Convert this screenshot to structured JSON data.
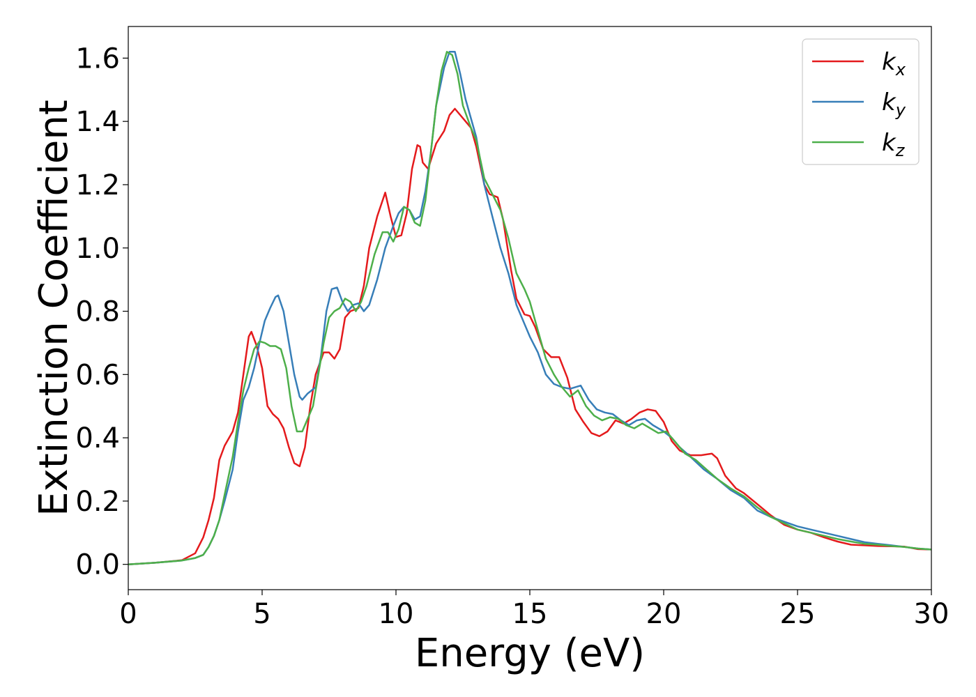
{
  "chart_data": {
    "type": "line",
    "title": "",
    "xlabel": "Energy (eV)",
    "ylabel": "Extinction Coefficient",
    "xlim": [
      0,
      30
    ],
    "ylim": [
      -0.08,
      1.7
    ],
    "xticks": [
      0,
      5,
      10,
      15,
      20,
      25,
      30
    ],
    "xtick_labels": [
      "0",
      "5",
      "10",
      "15",
      "20",
      "25",
      "30"
    ],
    "yticks": [
      0.0,
      0.2,
      0.4,
      0.6,
      0.8,
      1.0,
      1.2,
      1.4,
      1.6
    ],
    "ytick_labels": [
      "0.0",
      "0.2",
      "0.4",
      "0.6",
      "0.8",
      "1.0",
      "1.2",
      "1.4",
      "1.6"
    ],
    "grid": false,
    "legend_position": "top-right",
    "series": [
      {
        "name": "k_x",
        "base": "k",
        "sub": "x",
        "color": "#e41a1c",
        "x": [
          0,
          1,
          2,
          2.5,
          2.8,
          3.0,
          3.2,
          3.4,
          3.6,
          3.9,
          4.1,
          4.3,
          4.5,
          4.6,
          4.8,
          5.0,
          5.2,
          5.4,
          5.6,
          5.8,
          6.0,
          6.2,
          6.4,
          6.6,
          6.8,
          7.0,
          7.3,
          7.5,
          7.7,
          7.9,
          8.1,
          8.3,
          8.6,
          8.8,
          9.0,
          9.3,
          9.6,
          9.8,
          10.0,
          10.2,
          10.4,
          10.6,
          10.8,
          10.9,
          11.0,
          11.2,
          11.5,
          11.8,
          12.0,
          12.2,
          12.5,
          12.8,
          13.0,
          13.3,
          13.5,
          13.8,
          14.0,
          14.3,
          14.5,
          14.8,
          15.0,
          15.2,
          15.5,
          15.8,
          16.1,
          16.4,
          16.7,
          17.0,
          17.3,
          17.6,
          17.9,
          18.2,
          18.5,
          18.8,
          19.1,
          19.4,
          19.7,
          20.0,
          20.3,
          20.6,
          21.0,
          21.4,
          21.8,
          22.0,
          22.3,
          22.7,
          23.0,
          23.5,
          24.0,
          24.5,
          25.0,
          25.5,
          26.0,
          26.5,
          27.0,
          27.5,
          28.0,
          28.5,
          29.0,
          29.5,
          30.0
        ],
        "y": [
          0.0,
          0.005,
          0.013,
          0.035,
          0.085,
          0.14,
          0.21,
          0.33,
          0.375,
          0.42,
          0.48,
          0.6,
          0.72,
          0.735,
          0.69,
          0.62,
          0.5,
          0.475,
          0.46,
          0.43,
          0.37,
          0.32,
          0.31,
          0.37,
          0.5,
          0.6,
          0.67,
          0.67,
          0.65,
          0.68,
          0.78,
          0.8,
          0.81,
          0.88,
          1.0,
          1.1,
          1.175,
          1.1,
          1.035,
          1.04,
          1.11,
          1.25,
          1.325,
          1.32,
          1.27,
          1.25,
          1.33,
          1.37,
          1.42,
          1.44,
          1.41,
          1.38,
          1.32,
          1.2,
          1.17,
          1.16,
          1.09,
          0.93,
          0.84,
          0.79,
          0.785,
          0.75,
          0.68,
          0.655,
          0.655,
          0.59,
          0.49,
          0.45,
          0.415,
          0.405,
          0.42,
          0.455,
          0.445,
          0.46,
          0.48,
          0.49,
          0.485,
          0.45,
          0.39,
          0.36,
          0.345,
          0.345,
          0.35,
          0.335,
          0.28,
          0.24,
          0.225,
          0.19,
          0.155,
          0.125,
          0.11,
          0.1,
          0.085,
          0.072,
          0.062,
          0.06,
          0.058,
          0.057,
          0.056,
          0.048,
          0.047
        ]
      },
      {
        "name": "k_y",
        "base": "k",
        "sub": "y",
        "color": "#377eb8",
        "x": [
          0,
          1,
          2,
          2.5,
          2.8,
          3.0,
          3.2,
          3.4,
          3.6,
          3.9,
          4.1,
          4.3,
          4.5,
          4.7,
          4.9,
          5.1,
          5.3,
          5.5,
          5.6,
          5.8,
          6.0,
          6.2,
          6.4,
          6.5,
          6.7,
          7.0,
          7.2,
          7.4,
          7.6,
          7.8,
          8.0,
          8.2,
          8.4,
          8.6,
          8.8,
          9.0,
          9.3,
          9.6,
          9.9,
          10.1,
          10.3,
          10.5,
          10.7,
          10.9,
          11.1,
          11.3,
          11.5,
          11.8,
          12.0,
          12.2,
          12.4,
          12.6,
          12.8,
          13.0,
          13.3,
          13.6,
          13.9,
          14.2,
          14.5,
          14.8,
          15.0,
          15.3,
          15.6,
          15.9,
          16.2,
          16.5,
          16.9,
          17.2,
          17.5,
          17.8,
          18.1,
          18.4,
          18.7,
          19.0,
          19.3,
          19.6,
          20.0,
          20.3,
          20.6,
          21.0,
          21.5,
          22.0,
          22.5,
          23.0,
          23.5,
          24.0,
          24.5,
          25.0,
          25.5,
          26.0,
          26.5,
          27.0,
          27.5,
          28.0,
          28.5,
          29.0,
          29.5,
          30.0
        ],
        "y": [
          0.0,
          0.005,
          0.012,
          0.02,
          0.03,
          0.055,
          0.09,
          0.14,
          0.2,
          0.3,
          0.42,
          0.52,
          0.56,
          0.62,
          0.7,
          0.77,
          0.81,
          0.845,
          0.85,
          0.8,
          0.7,
          0.6,
          0.53,
          0.52,
          0.54,
          0.56,
          0.66,
          0.8,
          0.87,
          0.875,
          0.83,
          0.8,
          0.82,
          0.825,
          0.8,
          0.82,
          0.9,
          1.0,
          1.07,
          1.11,
          1.13,
          1.12,
          1.09,
          1.1,
          1.18,
          1.3,
          1.45,
          1.57,
          1.62,
          1.62,
          1.55,
          1.47,
          1.41,
          1.35,
          1.2,
          1.1,
          1.0,
          0.92,
          0.82,
          0.76,
          0.72,
          0.67,
          0.6,
          0.57,
          0.56,
          0.555,
          0.565,
          0.52,
          0.49,
          0.48,
          0.475,
          0.455,
          0.44,
          0.455,
          0.46,
          0.44,
          0.42,
          0.4,
          0.37,
          0.34,
          0.3,
          0.27,
          0.235,
          0.21,
          0.17,
          0.15,
          0.135,
          0.12,
          0.11,
          0.1,
          0.09,
          0.08,
          0.07,
          0.065,
          0.06,
          0.055,
          0.05,
          0.047
        ]
      },
      {
        "name": "k_z",
        "base": "k",
        "sub": "z",
        "color": "#4daf4a",
        "x": [
          0,
          1,
          2,
          2.5,
          2.8,
          3.0,
          3.2,
          3.4,
          3.6,
          3.9,
          4.1,
          4.3,
          4.5,
          4.7,
          4.9,
          5.1,
          5.3,
          5.5,
          5.7,
          5.9,
          6.1,
          6.3,
          6.5,
          6.7,
          6.9,
          7.1,
          7.3,
          7.5,
          7.7,
          7.9,
          8.1,
          8.3,
          8.5,
          8.7,
          8.9,
          9.2,
          9.5,
          9.7,
          9.9,
          10.1,
          10.3,
          10.5,
          10.7,
          10.9,
          11.1,
          11.3,
          11.5,
          11.7,
          11.9,
          12.1,
          12.3,
          12.5,
          12.8,
          13.0,
          13.3,
          13.6,
          13.9,
          14.2,
          14.5,
          14.8,
          15.0,
          15.3,
          15.6,
          15.9,
          16.2,
          16.5,
          16.8,
          17.1,
          17.4,
          17.7,
          18.0,
          18.3,
          18.6,
          18.9,
          19.2,
          19.5,
          19.8,
          20.1,
          20.4,
          20.8,
          21.2,
          21.6,
          22.0,
          22.5,
          23.0,
          23.5,
          24.0,
          24.5,
          25.0,
          25.5,
          26.0,
          26.5,
          27.0,
          27.5,
          28.0,
          28.5,
          29.0,
          29.5,
          30.0
        ],
        "y": [
          0.0,
          0.005,
          0.012,
          0.02,
          0.03,
          0.055,
          0.09,
          0.14,
          0.22,
          0.34,
          0.45,
          0.55,
          0.62,
          0.68,
          0.705,
          0.7,
          0.69,
          0.69,
          0.68,
          0.62,
          0.5,
          0.42,
          0.42,
          0.46,
          0.5,
          0.6,
          0.7,
          0.78,
          0.8,
          0.81,
          0.84,
          0.83,
          0.8,
          0.83,
          0.88,
          0.98,
          1.05,
          1.05,
          1.02,
          1.06,
          1.13,
          1.12,
          1.08,
          1.07,
          1.15,
          1.3,
          1.45,
          1.56,
          1.62,
          1.61,
          1.55,
          1.45,
          1.38,
          1.34,
          1.22,
          1.17,
          1.12,
          1.03,
          0.92,
          0.87,
          0.83,
          0.74,
          0.65,
          0.6,
          0.56,
          0.53,
          0.55,
          0.5,
          0.47,
          0.455,
          0.465,
          0.46,
          0.44,
          0.43,
          0.445,
          0.43,
          0.415,
          0.42,
          0.39,
          0.35,
          0.33,
          0.3,
          0.27,
          0.24,
          0.215,
          0.18,
          0.15,
          0.13,
          0.11,
          0.1,
          0.09,
          0.08,
          0.072,
          0.065,
          0.062,
          0.058,
          0.055,
          0.05,
          0.047
        ]
      }
    ]
  }
}
